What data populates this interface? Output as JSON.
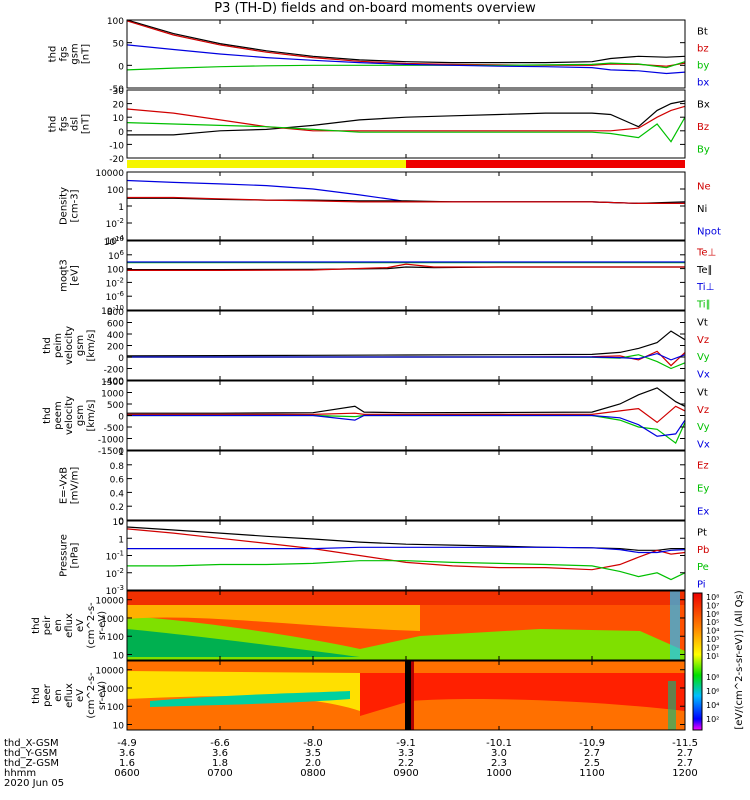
{
  "title": "P3 (TH-D) fields and on-board moments overview",
  "colors": {
    "black": "#000000",
    "red": "#d00000",
    "green": "#00c000",
    "blue": "#0000e0",
    "yellow": "#f5f500",
    "brightred": "#ee0000"
  },
  "chart_data": [
    {
      "type": "line",
      "name": "fgs_total",
      "ylabel_lines": [
        "thd",
        "fgs",
        "gsm",
        "[nT]"
      ],
      "ylim": [
        -50,
        100
      ],
      "yticks": [
        -50,
        0,
        50,
        100
      ],
      "legend": [
        {
          "label": "Bt",
          "color": "#000000"
        },
        {
          "label": "bz",
          "color": "#d00000"
        },
        {
          "label": "by",
          "color": "#00c000"
        },
        {
          "label": "bx",
          "color": "#0000e0"
        }
      ],
      "x": [
        0,
        0.5,
        1,
        1.5,
        2,
        2.5,
        3,
        3.5,
        4,
        4.5,
        5,
        5.2,
        5.5,
        5.8,
        6
      ],
      "series": [
        {
          "name": "Bt",
          "color": "#000000",
          "values": [
            100,
            70,
            48,
            32,
            20,
            12,
            8,
            6,
            6,
            6,
            8,
            15,
            20,
            18,
            20
          ]
        },
        {
          "name": "bz",
          "color": "#d00000",
          "values": [
            98,
            67,
            45,
            29,
            17,
            9,
            4,
            2,
            1,
            0,
            0,
            3,
            2,
            -2,
            5
          ]
        },
        {
          "name": "by",
          "color": "#00c000",
          "values": [
            -10,
            -6,
            -3,
            -1,
            0,
            0,
            0,
            0,
            0,
            1,
            2,
            5,
            3,
            -5,
            8
          ]
        },
        {
          "name": "bx",
          "color": "#0000e0",
          "values": [
            45,
            35,
            25,
            17,
            11,
            6,
            2,
            0,
            -2,
            -3,
            -5,
            -10,
            -12,
            -18,
            -15
          ]
        }
      ]
    },
    {
      "type": "line",
      "name": "fgs_dsl",
      "ylabel_lines": [
        "thd",
        "fgs",
        "dsl",
        "[nT]"
      ],
      "ylim": [
        -20,
        30
      ],
      "yticks": [
        -20,
        -10,
        0,
        10,
        20,
        30
      ],
      "legend": [
        {
          "label": "Bx",
          "color": "#000000"
        },
        {
          "label": "Bz",
          "color": "#d00000"
        },
        {
          "label": "By",
          "color": "#00c000"
        }
      ],
      "x": [
        0,
        0.5,
        1,
        1.5,
        2,
        2.5,
        3,
        3.5,
        4,
        4.5,
        5,
        5.2,
        5.5,
        5.7,
        5.85,
        6
      ],
      "series": [
        {
          "name": "Bx",
          "color": "#000000",
          "values": [
            -3,
            -3,
            0,
            1,
            4,
            8,
            10,
            11,
            12,
            13,
            13,
            12,
            3,
            15,
            20,
            22
          ]
        },
        {
          "name": "Bz",
          "color": "#d00000",
          "values": [
            16,
            13,
            8,
            3,
            0,
            0,
            0,
            0,
            0,
            0,
            0,
            0,
            2,
            10,
            15,
            18
          ]
        },
        {
          "name": "By",
          "color": "#00c000",
          "values": [
            6,
            5,
            4,
            3,
            1,
            -1,
            -1,
            -1,
            -1,
            -1,
            -1,
            -2,
            -5,
            5,
            -8,
            10
          ]
        }
      ]
    },
    {
      "type": "line",
      "name": "density",
      "yscale": "log",
      "ylabel_lines": [
        "Density",
        "[cm-3]"
      ],
      "ylim": [
        0.0001,
        10000
      ],
      "yticks": [
        0.0001,
        0.01,
        1,
        100,
        10000
      ],
      "legend": [
        {
          "label": "Ne",
          "color": "#d00000"
        },
        {
          "label": "Ni",
          "color": "#000000"
        },
        {
          "label": "Npot",
          "color": "#0000e0"
        }
      ],
      "x": [
        0,
        0.5,
        1,
        1.5,
        2,
        2.5,
        2.9,
        3,
        3.5,
        4,
        5,
        5.5,
        6
      ],
      "series": [
        {
          "name": "Npot",
          "color": "#0000e0",
          "values": [
            1000,
            600,
            400,
            250,
            100,
            20,
            5,
            3,
            3,
            3,
            3,
            2,
            2
          ]
        },
        {
          "name": "Ni",
          "color": "#000000",
          "values": [
            8,
            8,
            6,
            5,
            5,
            4,
            4,
            4,
            3,
            3,
            3,
            2,
            3
          ]
        },
        {
          "name": "Ne",
          "color": "#d00000",
          "values": [
            10,
            10,
            7,
            5,
            4,
            3,
            3,
            3,
            3,
            3,
            3,
            2,
            2
          ]
        }
      ]
    },
    {
      "type": "line",
      "name": "temperature",
      "yscale": "log",
      "ylabel_lines": [
        "moqt3",
        "[eV]"
      ],
      "ylim": [
        1e-10,
        10000000000.0
      ],
      "yticks": [
        1e-10,
        1e-06,
        0.01,
        100,
        1000000.0,
        10000000000.0
      ],
      "legend": [
        {
          "label": "Te⊥",
          "color": "#d00000"
        },
        {
          "label": "Te∥",
          "color": "#000000"
        },
        {
          "label": "Ti⊥",
          "color": "#0000e0"
        },
        {
          "label": "Ti∥",
          "color": "#00c000"
        }
      ],
      "x": [
        0,
        1,
        2,
        2.8,
        3,
        3.3,
        4,
        5,
        6
      ],
      "series": [
        {
          "name": "Ti∥",
          "color": "#00c000",
          "values": [
            5000,
            5000,
            5000,
            5000,
            5000,
            5000,
            5000,
            5000,
            5000
          ]
        },
        {
          "name": "Ti⊥",
          "color": "#0000e0",
          "values": [
            8000,
            8000,
            8000,
            8000,
            8000,
            8000,
            8000,
            8000,
            8000
          ]
        },
        {
          "name": "Te∥",
          "color": "#000000",
          "values": [
            50,
            50,
            60,
            100,
            300,
            200,
            300,
            300,
            300
          ]
        },
        {
          "name": "Te⊥",
          "color": "#d00000",
          "values": [
            30,
            30,
            40,
            200,
            2000,
            300,
            300,
            300,
            300
          ]
        }
      ]
    },
    {
      "type": "line",
      "name": "peim_velocity",
      "ylabel_lines": [
        "thd",
        "peim",
        "velocity",
        "gsm",
        "[km/s]"
      ],
      "ylim": [
        -400,
        800
      ],
      "yticks": [
        -400,
        -200,
        0,
        200,
        400,
        600,
        800
      ],
      "legend": [
        {
          "label": "Vt",
          "color": "#000000"
        },
        {
          "label": "Vz",
          "color": "#d00000"
        },
        {
          "label": "Vy",
          "color": "#00c000"
        },
        {
          "label": "Vx",
          "color": "#0000e0"
        }
      ],
      "x": [
        0,
        1,
        2,
        3,
        4,
        5,
        5.3,
        5.5,
        5.7,
        5.85,
        6
      ],
      "series": [
        {
          "name": "Vt",
          "color": "#000000",
          "values": [
            20,
            25,
            30,
            35,
            40,
            45,
            80,
            150,
            250,
            450,
            300
          ]
        },
        {
          "name": "Vz",
          "color": "#d00000",
          "values": [
            0,
            0,
            0,
            0,
            0,
            5,
            20,
            -50,
            100,
            -150,
            80
          ]
        },
        {
          "name": "Vy",
          "color": "#00c000",
          "values": [
            0,
            0,
            0,
            0,
            0,
            -5,
            -20,
            40,
            -80,
            -200,
            -100
          ]
        },
        {
          "name": "Vx",
          "color": "#0000e0",
          "values": [
            0,
            0,
            0,
            0,
            0,
            0,
            -10,
            -30,
            60,
            -50,
            40
          ]
        }
      ]
    },
    {
      "type": "line",
      "name": "peem_velocity",
      "ylabel_lines": [
        "thd",
        "peem",
        "velocity",
        "gsm",
        "[km/s]"
      ],
      "ylim": [
        -1500,
        1500
      ],
      "yticks": [
        -1500,
        -1000,
        -500,
        0,
        500,
        1000,
        1500
      ],
      "legend": [
        {
          "label": "Vt",
          "color": "#000000"
        },
        {
          "label": "Vz",
          "color": "#d00000"
        },
        {
          "label": "Vy",
          "color": "#00c000"
        },
        {
          "label": "Vx",
          "color": "#0000e0"
        }
      ],
      "x": [
        0,
        1,
        2,
        2.45,
        2.55,
        3,
        4,
        5,
        5.3,
        5.5,
        5.7,
        5.9,
        6
      ],
      "series": [
        {
          "name": "Vt",
          "color": "#000000",
          "values": [
            100,
            100,
            120,
            400,
            150,
            120,
            130,
            150,
            500,
            900,
            1200,
            600,
            400
          ]
        },
        {
          "name": "Vz",
          "color": "#d00000",
          "values": [
            50,
            50,
            50,
            100,
            50,
            50,
            50,
            50,
            200,
            300,
            -300,
            400,
            200
          ]
        },
        {
          "name": "Vy",
          "color": "#00c000",
          "values": [
            0,
            0,
            0,
            -50,
            0,
            0,
            0,
            0,
            -200,
            -500,
            -600,
            -1200,
            -300
          ]
        },
        {
          "name": "Vx",
          "color": "#0000e0",
          "values": [
            0,
            0,
            0,
            -200,
            0,
            0,
            0,
            0,
            -100,
            -400,
            -900,
            -800,
            -200
          ]
        }
      ]
    },
    {
      "type": "line",
      "name": "efield",
      "ylabel_lines": [
        "E=-VxB",
        "[mV/m]"
      ],
      "ylim": [
        0,
        1
      ],
      "yticks": [
        0,
        0.2,
        0.4,
        0.6,
        0.8,
        1.0
      ],
      "legend": [
        {
          "label": "Ez",
          "color": "#d00000"
        },
        {
          "label": "Ey",
          "color": "#00c000"
        },
        {
          "label": "Ex",
          "color": "#0000e0"
        }
      ],
      "x": [],
      "series": []
    },
    {
      "type": "line",
      "name": "pressure",
      "yscale": "log",
      "ylabel_lines": [
        "Pressure",
        "[nPa]"
      ],
      "ylim": [
        0.001,
        10
      ],
      "yticks": [
        0.001,
        0.01,
        0.1,
        1,
        10
      ],
      "legend": [
        {
          "label": "Pt",
          "color": "#000000"
        },
        {
          "label": "Pb",
          "color": "#d00000"
        },
        {
          "label": "Pe",
          "color": "#00c000"
        },
        {
          "label": "Pi",
          "color": "#0000e0"
        }
      ],
      "x": [
        0,
        0.5,
        1,
        1.5,
        2,
        2.5,
        3,
        3.5,
        4,
        4.5,
        5,
        5.3,
        5.5,
        5.7,
        5.85,
        6
      ],
      "series": [
        {
          "name": "Pt",
          "color": "#000000",
          "values": [
            4.5,
            3,
            2,
            1.3,
            0.9,
            0.6,
            0.45,
            0.4,
            0.35,
            0.3,
            0.28,
            0.25,
            0.2,
            0.2,
            0.25,
            0.25
          ]
        },
        {
          "name": "Pb",
          "color": "#d00000",
          "values": [
            3.5,
            2,
            1,
            0.5,
            0.25,
            0.1,
            0.04,
            0.025,
            0.02,
            0.02,
            0.015,
            0.03,
            0.08,
            0.2,
            0.12,
            0.15
          ]
        },
        {
          "name": "Pi",
          "color": "#0000e0",
          "values": [
            0.25,
            0.25,
            0.25,
            0.25,
            0.25,
            0.3,
            0.3,
            0.3,
            0.3,
            0.3,
            0.28,
            0.22,
            0.15,
            0.15,
            0.2,
            0.22
          ]
        },
        {
          "name": "Pe",
          "color": "#00c000",
          "values": [
            0.025,
            0.025,
            0.03,
            0.03,
            0.035,
            0.05,
            0.05,
            0.04,
            0.035,
            0.03,
            0.025,
            0.012,
            0.006,
            0.01,
            0.004,
            0.01
          ]
        }
      ]
    },
    {
      "type": "heatmap",
      "name": "peir",
      "ylabel_lines": [
        "thd",
        "peir",
        "en",
        "eflux",
        "eV",
        "(cm^2-s-",
        "sr-eV)"
      ],
      "yscale": "log",
      "ylim": [
        5,
        30000
      ],
      "yticks": [
        10,
        100,
        1000,
        10000
      ]
    },
    {
      "type": "heatmap",
      "name": "peer",
      "ylabel_lines": [
        "thd",
        "peer",
        "en",
        "eflux",
        "eV",
        "(cm^2-s-",
        "sr-eV)"
      ],
      "yscale": "log",
      "ylim": [
        5,
        30000
      ],
      "yticks": [
        10,
        100,
        1000,
        10000
      ]
    }
  ],
  "colorbar": {
    "label": "[eV/(cm^2-s-sr-eV)] (All Qs)",
    "ticks_top": [
      "10⁸",
      "10⁷",
      "10⁶",
      "10⁵",
      "10⁴",
      "10³",
      "10²",
      "10¹"
    ],
    "ticks_bottom": [
      "10⁸",
      "10⁶",
      "10⁴",
      "10²"
    ]
  },
  "xaxis": {
    "row_labels": [
      "thd_X-GSM",
      "thd_Y-GSM",
      "thd_Z-GSM",
      "hhmm",
      "2020 Jun 05"
    ],
    "ticks": [
      {
        "x": 0,
        "vals": [
          "-4.9",
          "3.6",
          "1.6",
          "0600"
        ]
      },
      {
        "x": 1,
        "vals": [
          "-6.6",
          "3.6",
          "1.8",
          "0700"
        ]
      },
      {
        "x": 2,
        "vals": [
          "-8.0",
          "3.5",
          "2.0",
          "0800"
        ]
      },
      {
        "x": 3,
        "vals": [
          "-9.1",
          "3.3",
          "2.2",
          "0900"
        ]
      },
      {
        "x": 4,
        "vals": [
          "-10.1",
          "3.0",
          "2.3",
          "1000"
        ]
      },
      {
        "x": 5,
        "vals": [
          "-10.9",
          "2.7",
          "2.5",
          "1100"
        ]
      },
      {
        "x": 6,
        "vals": [
          "-11.5",
          "2.7",
          "2.7",
          "1200"
        ]
      }
    ]
  }
}
